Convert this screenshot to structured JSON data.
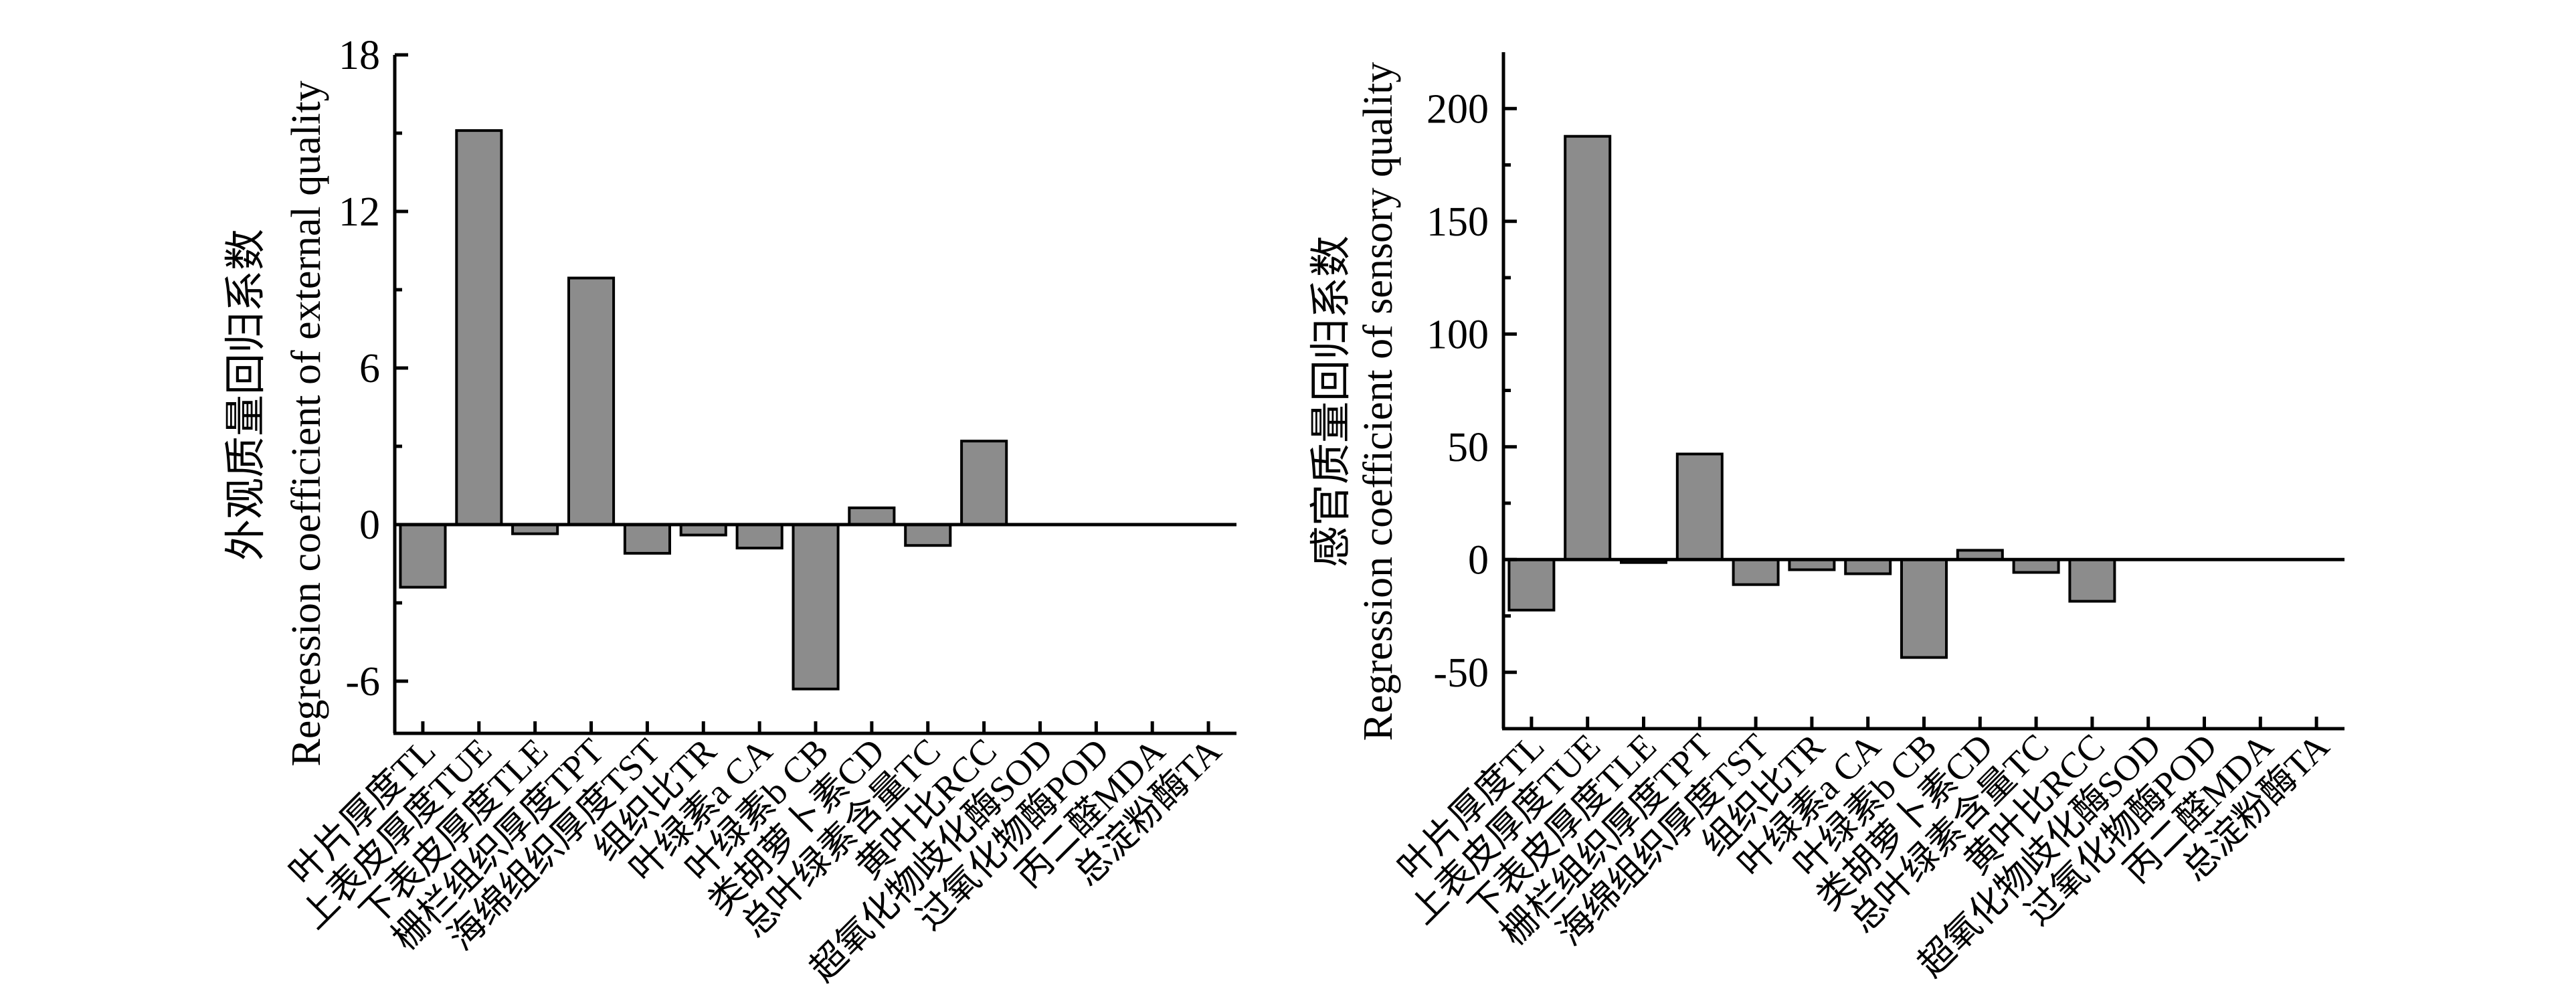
{
  "figure": {
    "bar_fill": "#8c8c8c",
    "bar_stroke": "#000000",
    "background": "#ffffff"
  },
  "chart_data": [
    {
      "id": "external",
      "type": "bar",
      "title": "",
      "ylabel_cn": "外观质量回归系数",
      "ylabel_en": "Regression coefficient of external quality",
      "xlabel": "",
      "ylim": [
        -8,
        18
      ],
      "yticks": [
        -6,
        0,
        6,
        12,
        18
      ],
      "ytick_labels": [
        "-6",
        "0",
        "6",
        "12",
        "18"
      ],
      "yminor_ticks": [
        -3,
        3,
        9,
        15
      ],
      "grid": false,
      "legend": "none",
      "zero_line": true,
      "categories": [
        "叶片厚度TL",
        "上表皮厚度TUE",
        "下表皮厚度TLE",
        "栅栏组织厚度TPT",
        "海绵组织厚度TST",
        "组织比TR",
        "叶绿素a CA",
        "叶绿素b CB",
        "类胡萝卜素CD",
        "总叶绿素含量TC",
        "黄叶比RCC",
        "超氧化物歧化酶SOD",
        "过氧化物酶POD",
        "丙二醛MDA",
        "总淀粉酶TA"
      ],
      "values": [
        -2.4,
        15.1,
        -0.35,
        9.45,
        -1.1,
        -0.4,
        -0.9,
        -6.3,
        0.64,
        -0.8,
        3.2,
        0,
        0,
        0,
        0
      ]
    },
    {
      "id": "sensory",
      "type": "bar",
      "title": "",
      "ylabel_cn": "感官质量回归系数",
      "ylabel_en": "Regression coefficient of sensory quality",
      "xlabel": "",
      "ylim": [
        -75,
        225
      ],
      "yticks": [
        -50,
        0,
        50,
        100,
        150,
        200
      ],
      "ytick_labels": [
        "-50",
        "0",
        "50",
        "100",
        "150",
        "200"
      ],
      "yminor_ticks": [
        -25,
        25,
        75,
        125,
        175
      ],
      "grid": false,
      "legend": "none",
      "zero_line": true,
      "categories": [
        "叶片厚度TL",
        "上表皮厚度TUE",
        "下表皮厚度TLE",
        "栅栏组织厚度TPT",
        "海绵组织厚度TST",
        "组织比TR",
        "叶绿素a CA",
        "叶绿素b CB",
        "类胡萝卜素CD",
        "总叶绿素含量TC",
        "黄叶比RCC",
        "超氧化物歧化酶SOD",
        "过氧化物酶POD",
        "丙二醛MDA",
        "总淀粉酶TA"
      ],
      "values": [
        -22.4,
        187.7,
        -1.3,
        46.8,
        -11.1,
        -4.5,
        -6.3,
        -43.4,
        4.1,
        -5.7,
        -18.5,
        0,
        0,
        0,
        0
      ]
    }
  ]
}
